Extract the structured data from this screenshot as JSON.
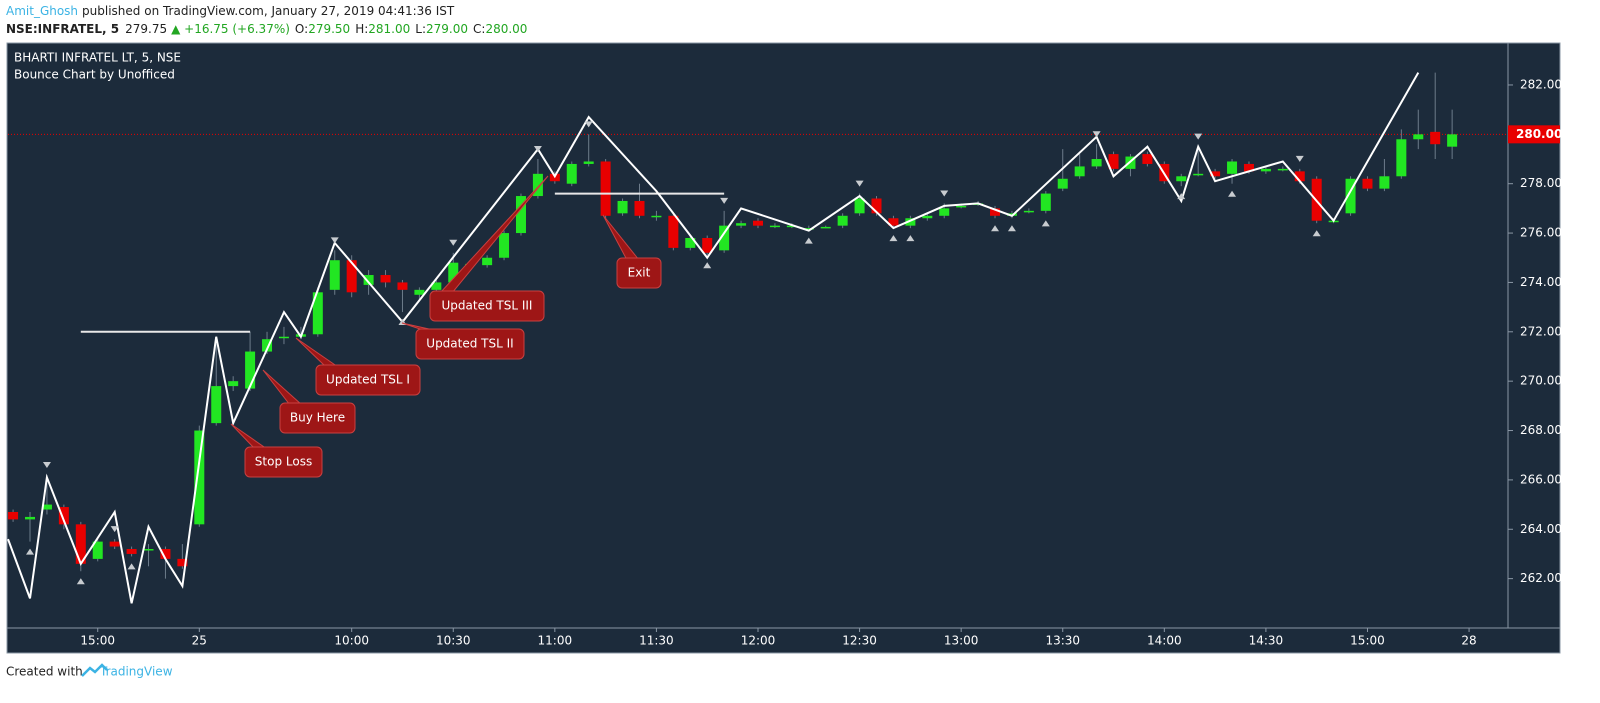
{
  "header": {
    "author": "Amit_Ghosh",
    "published": "published on TradingView.com, January 27, 2019 04:41:36 IST",
    "symbol": "NSE:INFRATEL, 5",
    "price": "279.75",
    "change": "▲ +16.75 (+6.37%)",
    "ohlc": [
      {
        "label": "O:",
        "value": "279.50"
      },
      {
        "label": "H:",
        "value": "281.00"
      },
      {
        "label": "L:",
        "value": "279.00"
      },
      {
        "label": "C:",
        "value": "280.00"
      }
    ]
  },
  "footer": {
    "text": "Created with",
    "brand": "TradingView"
  },
  "chart_data": {
    "type": "candlestick",
    "title": "BHARTI INFRATEL LT, 5, NSE",
    "subtitle": "Bounce Chart by Unofficed",
    "up_color": "#22e622",
    "down_color": "#e80000",
    "categories": [
      null,
      null,
      null,
      null,
      null,
      "15:00",
      null,
      null,
      null,
      null,
      null,
      "25",
      null,
      null,
      null,
      null,
      null,
      null,
      null,
      null,
      "10:00",
      null,
      null,
      null,
      null,
      null,
      "10:30",
      null,
      null,
      null,
      null,
      null,
      "11:00",
      null,
      null,
      null,
      null,
      null,
      "11:30",
      null,
      null,
      null,
      null,
      null,
      "12:00",
      null,
      null,
      null,
      null,
      null,
      "12:30",
      null,
      null,
      null,
      null,
      null,
      "13:00",
      null,
      null,
      null,
      null,
      null,
      "13:30",
      null,
      null,
      null,
      null,
      null,
      "14:00",
      null,
      null,
      null,
      null,
      null,
      "14:30",
      null,
      null,
      null,
      null,
      null,
      "15:00",
      null,
      null,
      null,
      null,
      null,
      "28"
    ],
    "open": [
      264.7,
      264.4,
      264.8,
      264.9,
      264.2,
      262.8,
      263.5,
      263.2,
      263.2,
      263.2,
      262.8,
      264.2,
      268.3,
      269.8,
      269.7,
      271.2,
      271.8,
      271.8,
      271.9,
      273.7,
      274.9,
      273.9,
      274.3,
      274.0,
      273.5,
      273.7,
      274.0,
      274.7,
      274.7,
      275.0,
      276.0,
      277.5,
      278.4,
      278.0,
      278.8,
      278.9,
      276.8,
      277.3,
      276.7,
      276.7,
      275.4,
      275.8,
      275.3,
      276.3,
      276.5,
      276.3,
      276.3,
      276.2,
      276.25,
      276.3,
      276.8,
      277.4,
      276.6,
      276.3,
      276.6,
      276.7,
      277.1,
      277.2,
      277.0,
      276.7,
      276.9,
      276.9,
      277.8,
      278.3,
      278.7,
      279.2,
      278.6,
      279.2,
      278.8,
      278.1,
      278.4,
      278.5,
      278.4,
      278.8,
      278.5,
      278.6,
      278.5,
      278.2,
      276.5,
      276.8,
      278.2,
      277.8,
      278.3,
      279.8,
      280.1,
      279.5,
      null
    ],
    "high": [
      264.8,
      264.7,
      266.2,
      265.0,
      264.3,
      263.6,
      263.6,
      263.3,
      263.4,
      263.3,
      263.4,
      268.2,
      271.5,
      270.2,
      272.0,
      272.0,
      272.2,
      272.2,
      273.8,
      275.3,
      275.1,
      274.5,
      274.5,
      274.1,
      273.8,
      274.1,
      275.2,
      274.8,
      275.1,
      276.1,
      277.6,
      279.0,
      278.5,
      278.9,
      280.0,
      279.0,
      277.4,
      278.0,
      276.9,
      276.8,
      275.9,
      275.9,
      276.9,
      276.5,
      276.6,
      276.4,
      276.4,
      276.3,
      276.3,
      276.8,
      277.6,
      277.5,
      276.7,
      276.7,
      276.8,
      277.2,
      277.2,
      277.3,
      277.1,
      276.9,
      277.0,
      277.7,
      279.4,
      279.2,
      279.6,
      279.3,
      279.2,
      279.3,
      278.9,
      278.4,
      279.5,
      278.6,
      279.0,
      278.9,
      278.7,
      278.7,
      278.6,
      278.3,
      276.6,
      278.3,
      278.3,
      279.0,
      280.2,
      281.0,
      282.5,
      281.0,
      null
    ],
    "low": [
      264.3,
      263.5,
      264.6,
      264.0,
      262.3,
      262.7,
      263.2,
      262.9,
      262.5,
      262.0,
      262.4,
      264.1,
      268.2,
      269.6,
      269.6,
      271.1,
      271.5,
      271.7,
      271.8,
      273.5,
      273.4,
      273.5,
      273.8,
      272.8,
      273.3,
      273.5,
      273.9,
      274.6,
      274.6,
      274.9,
      275.9,
      277.4,
      278.0,
      277.9,
      278.7,
      276.6,
      276.7,
      276.6,
      276.5,
      275.3,
      275.3,
      275.1,
      275.2,
      276.2,
      276.2,
      276.2,
      276.2,
      276.1,
      276.2,
      276.2,
      276.7,
      276.7,
      276.2,
      276.2,
      276.5,
      276.6,
      277.0,
      277.1,
      276.6,
      276.6,
      276.8,
      276.8,
      277.7,
      278.2,
      278.6,
      278.5,
      278.3,
      278.7,
      278.0,
      277.9,
      278.3,
      278.2,
      278.0,
      278.4,
      278.4,
      278.5,
      278.0,
      276.4,
      276.4,
      276.7,
      277.7,
      277.7,
      278.2,
      279.4,
      279.0,
      279.0,
      null
    ],
    "close": [
      264.4,
      264.5,
      265.0,
      264.2,
      262.6,
      263.5,
      263.3,
      263.0,
      263.2,
      262.8,
      262.5,
      268.0,
      269.8,
      270.0,
      271.2,
      271.7,
      271.8,
      271.9,
      273.6,
      274.9,
      273.6,
      274.3,
      274.0,
      273.7,
      273.7,
      274.0,
      274.8,
      274.75,
      275.0,
      276.0,
      277.5,
      278.4,
      278.1,
      278.8,
      278.9,
      276.7,
      277.3,
      276.7,
      276.7,
      275.4,
      275.8,
      275.2,
      276.3,
      276.4,
      276.3,
      276.3,
      276.3,
      276.2,
      276.25,
      276.7,
      277.4,
      276.8,
      276.3,
      276.6,
      276.7,
      277.0,
      277.1,
      277.2,
      276.7,
      276.8,
      276.9,
      277.6,
      278.2,
      278.7,
      279.0,
      278.6,
      279.1,
      278.8,
      278.1,
      278.3,
      278.4,
      278.3,
      278.9,
      278.5,
      278.6,
      278.6,
      278.1,
      276.5,
      276.5,
      278.2,
      277.8,
      278.3,
      279.8,
      280.0,
      279.6,
      280.0,
      null
    ],
    "zigzag": {
      "color": "#ffffff",
      "x": [
        -0.3,
        1,
        2,
        4,
        6,
        7,
        8,
        9,
        10,
        12,
        13,
        16,
        17,
        19,
        23,
        31,
        32,
        34,
        38,
        40,
        41,
        43,
        47,
        50,
        52,
        55,
        57,
        59,
        64,
        65,
        67,
        69,
        70,
        71,
        75,
        76,
        77,
        78,
        83
      ],
      "values": [
        263.6,
        261.2,
        266.1,
        262.6,
        264.7,
        261.0,
        264.1,
        262.8,
        261.7,
        271.8,
        268.3,
        272.8,
        271.8,
        275.6,
        272.4,
        279.4,
        278.3,
        280.7,
        277.7,
        275.9,
        275.0,
        277.0,
        276.1,
        277.5,
        276.2,
        277.1,
        277.2,
        276.7,
        279.9,
        278.3,
        279.5,
        277.3,
        279.5,
        278.1,
        278.9,
        278.1,
        277.3,
        276.5,
        282.5
      ]
    },
    "levels": [
      {
        "x": [
          4,
          14
        ],
        "value": 272.0
      },
      {
        "x": [
          32,
          42
        ],
        "value": 277.6
      }
    ],
    "signals_down": [
      2,
      6,
      19,
      26,
      31,
      34,
      42,
      50,
      55,
      64,
      70,
      76
    ],
    "signals_up": [
      1,
      4,
      7,
      23,
      41,
      47,
      52,
      53,
      58,
      59,
      61,
      69,
      72,
      77
    ],
    "annotations": [
      "Stop Loss",
      "Buy Here",
      "Updated TSL I",
      "Updated TSL II",
      "Updated TSL III",
      "Exit"
    ],
    "last_price": {
      "value": 280,
      "label": "280.00"
    },
    "xlim": [
      -0.3,
      88.3
    ],
    "ylim": [
      260.0,
      283.7
    ],
    "yticks": [
      {
        "value": 262,
        "label": "262.00"
      },
      {
        "value": 264,
        "label": "264.00"
      },
      {
        "value": 266,
        "label": "266.00"
      },
      {
        "value": 268,
        "label": "268.00"
      },
      {
        "value": 270,
        "label": "270.00"
      },
      {
        "value": 272,
        "label": "272.00"
      },
      {
        "value": 274,
        "label": "274.00"
      },
      {
        "value": 276,
        "label": "276.00"
      },
      {
        "value": 278,
        "label": "278.00"
      },
      {
        "value": 282,
        "label": "282.00"
      }
    ],
    "grid": false
  }
}
